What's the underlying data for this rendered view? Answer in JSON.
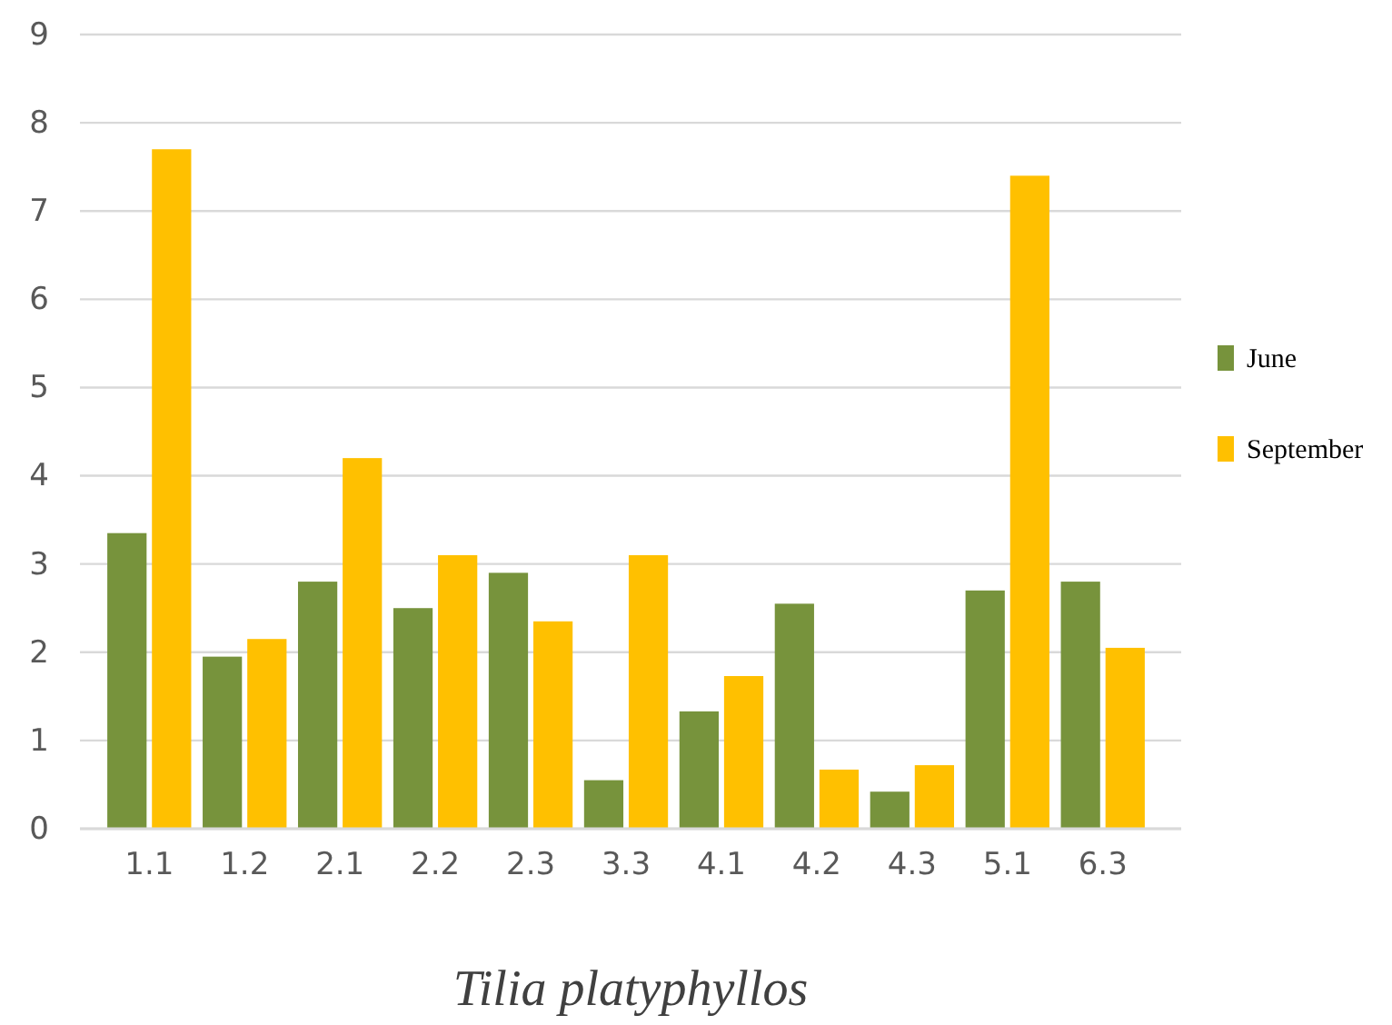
{
  "chart_data": {
    "type": "bar",
    "xlabel": "Tilia platyphyllos",
    "categories": [
      "1.1",
      "1.2",
      "2.1",
      "2.2",
      "2.3",
      "3.3",
      "4.1",
      "4.2",
      "4.3",
      "5.1",
      "6.3"
    ],
    "series": [
      {
        "name": "June",
        "color": "#77933c",
        "values": [
          3.35,
          1.95,
          2.8,
          2.5,
          2.9,
          0.55,
          1.33,
          2.55,
          0.42,
          2.7,
          2.8
        ]
      },
      {
        "name": "September",
        "color": "#ffc000",
        "values": [
          7.7,
          2.15,
          4.2,
          3.1,
          2.35,
          3.1,
          1.73,
          0.67,
          0.72,
          7.4,
          2.05
        ]
      }
    ],
    "ylim": [
      0,
      9
    ],
    "yticks": [
      0,
      1,
      2,
      3,
      4,
      5,
      6,
      7,
      8,
      9
    ],
    "grid": "y",
    "legend": "right"
  }
}
